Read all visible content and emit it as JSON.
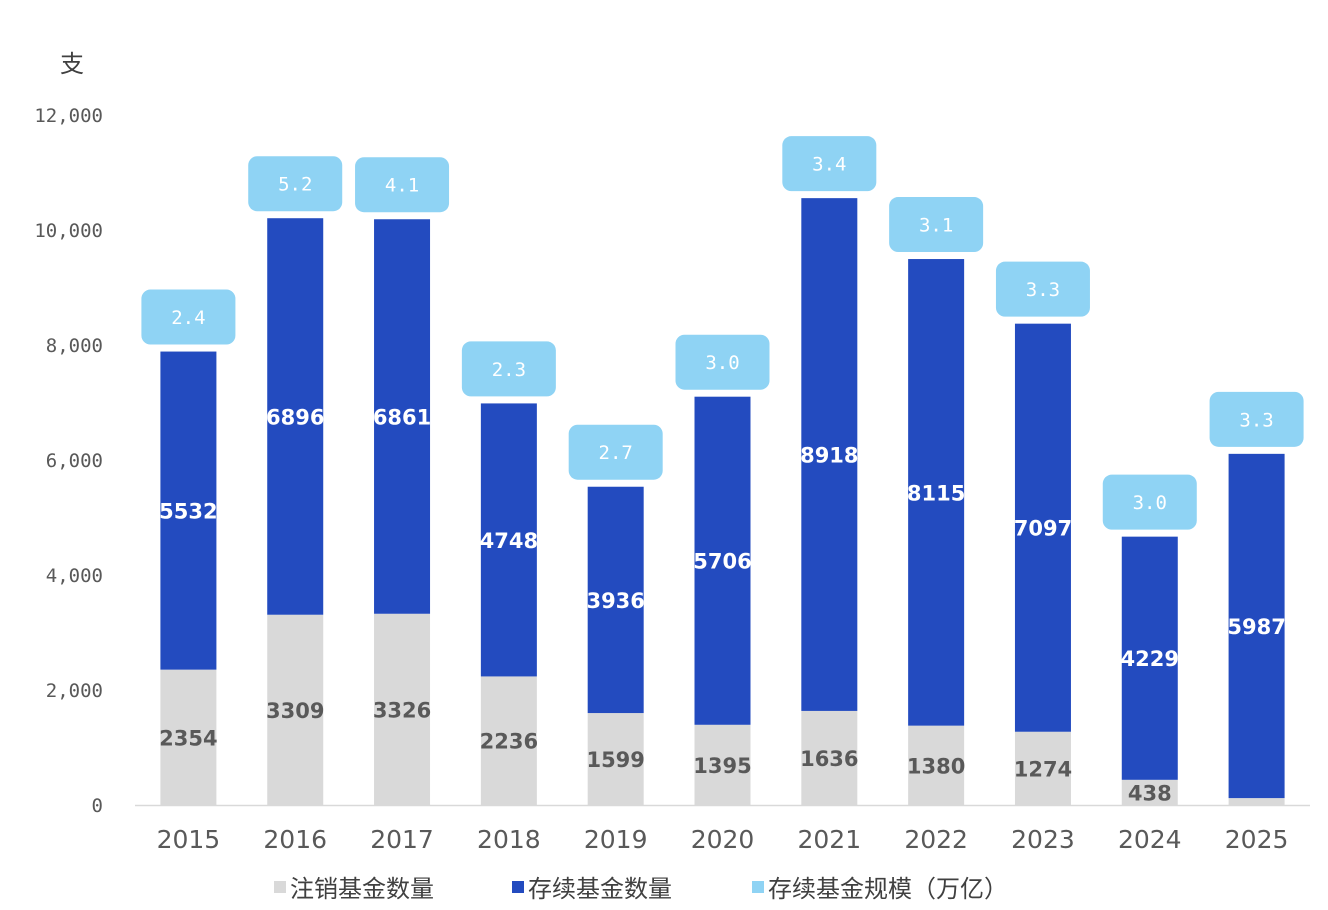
{
  "chart_data": {
    "type": "bar",
    "stacked": true,
    "title": "",
    "unit_label": "支",
    "categories": [
      "2015",
      "2016",
      "2017",
      "2018",
      "2019",
      "2020",
      "2021",
      "2022",
      "2023",
      "2024",
      "2025"
    ],
    "series": [
      {
        "name": "注销基金数量",
        "color": "#d9d9d9",
        "values": [
          2354,
          3309,
          3326,
          2236,
          1599,
          1395,
          1636,
          1380,
          1274,
          438,
          120
        ],
        "labels": [
          "2354",
          "3309",
          "3326",
          "2236",
          "1599",
          "1395",
          "1636",
          "1380",
          "1274",
          "438",
          ""
        ]
      },
      {
        "name": "存续基金数量",
        "color": "#234bbf",
        "values": [
          5532,
          6896,
          6861,
          4748,
          3936,
          5706,
          8918,
          8115,
          7097,
          4229,
          5987
        ],
        "labels": [
          "5532",
          "6896",
          "6861",
          "4748",
          "3936",
          "5706",
          "8918",
          "8115",
          "7097",
          "4229",
          "5987"
        ]
      },
      {
        "name": "存续基金规模（万亿）",
        "color": "#8fd3f4",
        "values": [
          2.4,
          5.2,
          4.1,
          2.3,
          2.7,
          3.0,
          3.4,
          3.1,
          3.3,
          3.0,
          3.3
        ],
        "labels": [
          "2.4",
          "5.2",
          "4.1",
          "2.3",
          "2.7",
          "3.0",
          "3.4",
          "3.1",
          "3.3",
          "3.0",
          "3.3"
        ]
      }
    ],
    "yaxis": {
      "min": 0,
      "max": 12000,
      "ticks": [
        0,
        2000,
        4000,
        6000,
        8000,
        10000,
        12000
      ],
      "tick_labels": [
        "0",
        "2,000",
        "4,000",
        "6,000",
        "8,000",
        "10,000",
        "12,000"
      ]
    },
    "xlabel": "",
    "ylabel": "",
    "grid": false,
    "legend_position": "bottom"
  }
}
